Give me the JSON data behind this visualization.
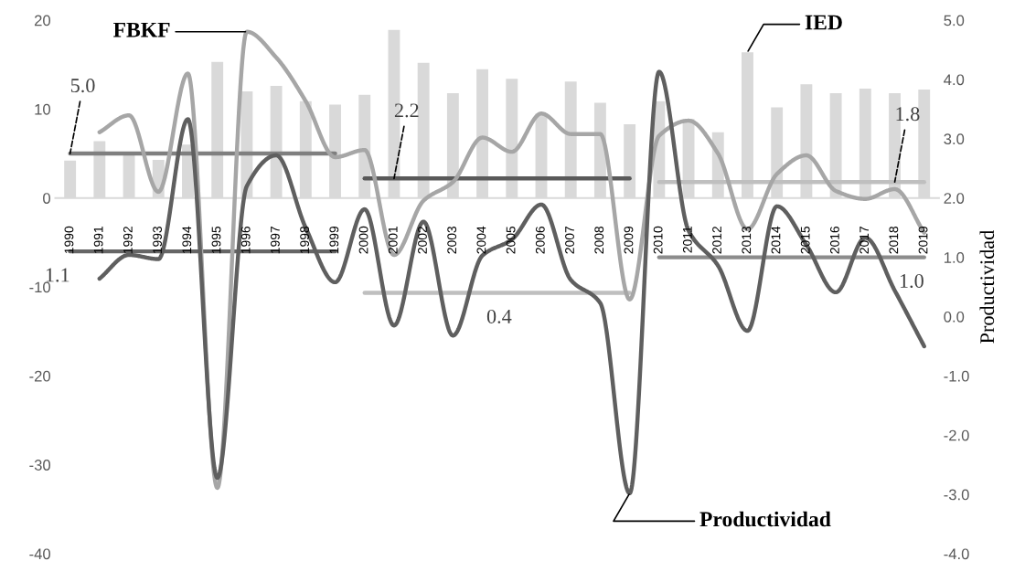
{
  "chart_data": {
    "type": "bar",
    "categories": [
      "1990",
      "1991",
      "1992",
      "1993",
      "1994",
      "1995",
      "1996",
      "1997",
      "1998",
      "1999",
      "2000",
      "2001",
      "2002",
      "2003",
      "2004",
      "2005",
      "2006",
      "2007",
      "2008",
      "2009",
      "2010",
      "2011",
      "2012",
      "2013",
      "2014",
      "2015",
      "2016",
      "2017",
      "2018",
      "2019"
    ],
    "ylim": [
      -40,
      20
    ],
    "yticks": [
      -40,
      -30,
      -20,
      -10,
      0,
      10,
      20
    ],
    "y2lim": [
      -4,
      5
    ],
    "y2ticks": [
      {
        "value": -4,
        "label": "-4.0"
      },
      {
        "value": -3,
        "label": "-3.0"
      },
      {
        "value": -2,
        "label": "-2.0"
      },
      {
        "value": -1,
        "label": "-1.0"
      },
      {
        "value": 0,
        "label": "0.0"
      },
      {
        "value": 1,
        "label": "1.0"
      },
      {
        "value": 2,
        "label": "2.0"
      },
      {
        "value": 3,
        "label": "3.0"
      },
      {
        "value": 4,
        "label": "4.0"
      },
      {
        "value": 5,
        "label": "5.0"
      }
    ],
    "y2label": "Productividad",
    "grid": false,
    "series": [
      {
        "color": "#d9d9d9",
        "values": [
          4.2,
          6.4,
          5.0,
          4.3,
          6.0,
          15.3,
          12.0,
          12.6,
          10.9,
          10.5,
          11.6,
          18.9,
          15.2,
          11.8,
          14.5,
          13.4,
          9.5,
          13.1,
          10.7,
          8.3,
          10.9,
          8.9,
          7.4,
          16.4,
          10.2,
          12.8,
          11.8,
          12.3,
          11.8,
          12.2
        ]
      },
      {
        "type": "line",
        "color": "#7f7f7f",
        "values": [
          5.0,
          5.0,
          5.0,
          5.0,
          5.0,
          5.0,
          5.0,
          5.0,
          5.0,
          5.0,
          null,
          null,
          null,
          null,
          null,
          null,
          null,
          null,
          null,
          null,
          null,
          null,
          null,
          null,
          null,
          null,
          null,
          null,
          null,
          null
        ],
        "value_labels": [
          "5.0",
          null,
          null,
          null,
          null,
          null,
          null,
          null,
          null,
          null,
          null,
          null,
          null,
          null,
          null,
          null,
          null,
          null,
          null,
          null,
          null,
          null,
          null,
          null,
          null,
          null,
          null,
          null,
          null,
          null
        ]
      },
      {
        "type": "line",
        "color": "#595959",
        "values": [
          null,
          null,
          null,
          null,
          null,
          null,
          null,
          null,
          null,
          null,
          2.2,
          2.2,
          2.2,
          2.2,
          2.2,
          2.2,
          2.2,
          2.2,
          2.2,
          2.2,
          null,
          null,
          null,
          null,
          null,
          null,
          null,
          null,
          null,
          null
        ],
        "value_labels": [
          null,
          null,
          null,
          null,
          null,
          null,
          null,
          null,
          null,
          null,
          null,
          "2.2",
          null,
          null,
          null,
          null,
          null,
          null,
          null,
          null,
          null,
          null,
          null,
          null,
          null,
          null,
          null,
          null,
          null,
          null
        ]
      },
      {
        "type": "line",
        "color": "#bfbfbf",
        "values": [
          null,
          null,
          null,
          null,
          null,
          null,
          null,
          null,
          null,
          null,
          null,
          null,
          null,
          null,
          null,
          null,
          null,
          null,
          null,
          null,
          1.8,
          1.8,
          1.8,
          1.8,
          1.8,
          1.8,
          1.8,
          1.8,
          1.8,
          1.8
        ],
        "value_labels": [
          null,
          null,
          null,
          null,
          null,
          null,
          null,
          null,
          null,
          null,
          null,
          null,
          null,
          null,
          null,
          null,
          null,
          null,
          null,
          null,
          null,
          null,
          null,
          null,
          null,
          null,
          null,
          null,
          "1.8",
          null
        ]
      },
      {
        "type": "line",
        "axis": "y2",
        "color": "#666666",
        "values": [
          1.1,
          1.1,
          1.1,
          1.1,
          1.1,
          1.1,
          1.1,
          1.1,
          1.1,
          1.1,
          null,
          null,
          null,
          null,
          null,
          null,
          null,
          null,
          null,
          null,
          null,
          null,
          null,
          null,
          null,
          null,
          null,
          null,
          null,
          null
        ],
        "value_labels": [
          "1.1",
          null,
          null,
          null,
          null,
          null,
          null,
          null,
          null,
          null,
          null,
          null,
          null,
          null,
          null,
          null,
          null,
          null,
          null,
          null,
          null,
          null,
          null,
          null,
          null,
          null,
          null,
          null,
          null,
          null
        ]
      },
      {
        "type": "line",
        "axis": "y2",
        "color": "#bfbfbf",
        "values": [
          null,
          null,
          null,
          null,
          null,
          null,
          null,
          null,
          null,
          null,
          0.4,
          0.4,
          0.4,
          0.4,
          0.4,
          0.4,
          0.4,
          0.4,
          0.4,
          0.4,
          null,
          null,
          null,
          null,
          null,
          null,
          null,
          null,
          null,
          null
        ],
        "value_labels": [
          null,
          null,
          null,
          null,
          null,
          null,
          null,
          null,
          null,
          null,
          null,
          null,
          null,
          null,
          null,
          "0.4",
          null,
          null,
          null,
          null,
          null,
          null,
          null,
          null,
          null,
          null,
          null,
          null,
          null,
          null
        ]
      },
      {
        "type": "line",
        "axis": "y2",
        "color": "#8c8c8c",
        "values": [
          null,
          null,
          null,
          null,
          null,
          null,
          null,
          null,
          null,
          null,
          null,
          null,
          null,
          null,
          null,
          null,
          null,
          null,
          null,
          null,
          1.0,
          1.0,
          1.0,
          1.0,
          1.0,
          1.0,
          1.0,
          1.0,
          1.0,
          1.0
        ],
        "value_labels": [
          null,
          null,
          null,
          null,
          null,
          null,
          null,
          null,
          null,
          null,
          null,
          null,
          null,
          null,
          null,
          null,
          null,
          null,
          null,
          null,
          null,
          null,
          null,
          null,
          null,
          null,
          null,
          null,
          null,
          "1.0"
        ]
      },
      {
        "type": "line",
        "color": "#a6a6a6",
        "values": [
          null,
          7.4,
          9.3,
          0.7,
          14.0,
          -32.6,
          18.7,
          15.8,
          10.9,
          4.6,
          5.4,
          -6.4,
          -0.3,
          1.8,
          6.8,
          5.2,
          9.5,
          7.2,
          7.2,
          -11.4,
          7.0,
          8.7,
          5.0,
          -3.5,
          2.7,
          4.8,
          0.8,
          -0.1,
          1.0,
          -3.9
        ]
      },
      {
        "type": "line",
        "axis": "y2",
        "color": "#5f5f5f",
        "values": [
          null,
          0.64,
          1.04,
          0.97,
          3.33,
          -2.72,
          2.2,
          2.72,
          1.5,
          0.58,
          1.81,
          -0.15,
          1.6,
          -0.32,
          1.03,
          1.3,
          1.89,
          0.62,
          0.23,
          -2.98,
          4.13,
          1.45,
          0.86,
          -0.24,
          1.86,
          1.21,
          0.41,
          1.33,
          0.44,
          -0.5
        ]
      }
    ],
    "annotations": [
      {
        "text": "FBKF",
        "x": "1996",
        "y": 18.7
      },
      {
        "text": "IED",
        "x": "2013",
        "y": 16.4
      },
      {
        "text": "Productividad",
        "x": "2009",
        "y": -33.2
      }
    ]
  }
}
